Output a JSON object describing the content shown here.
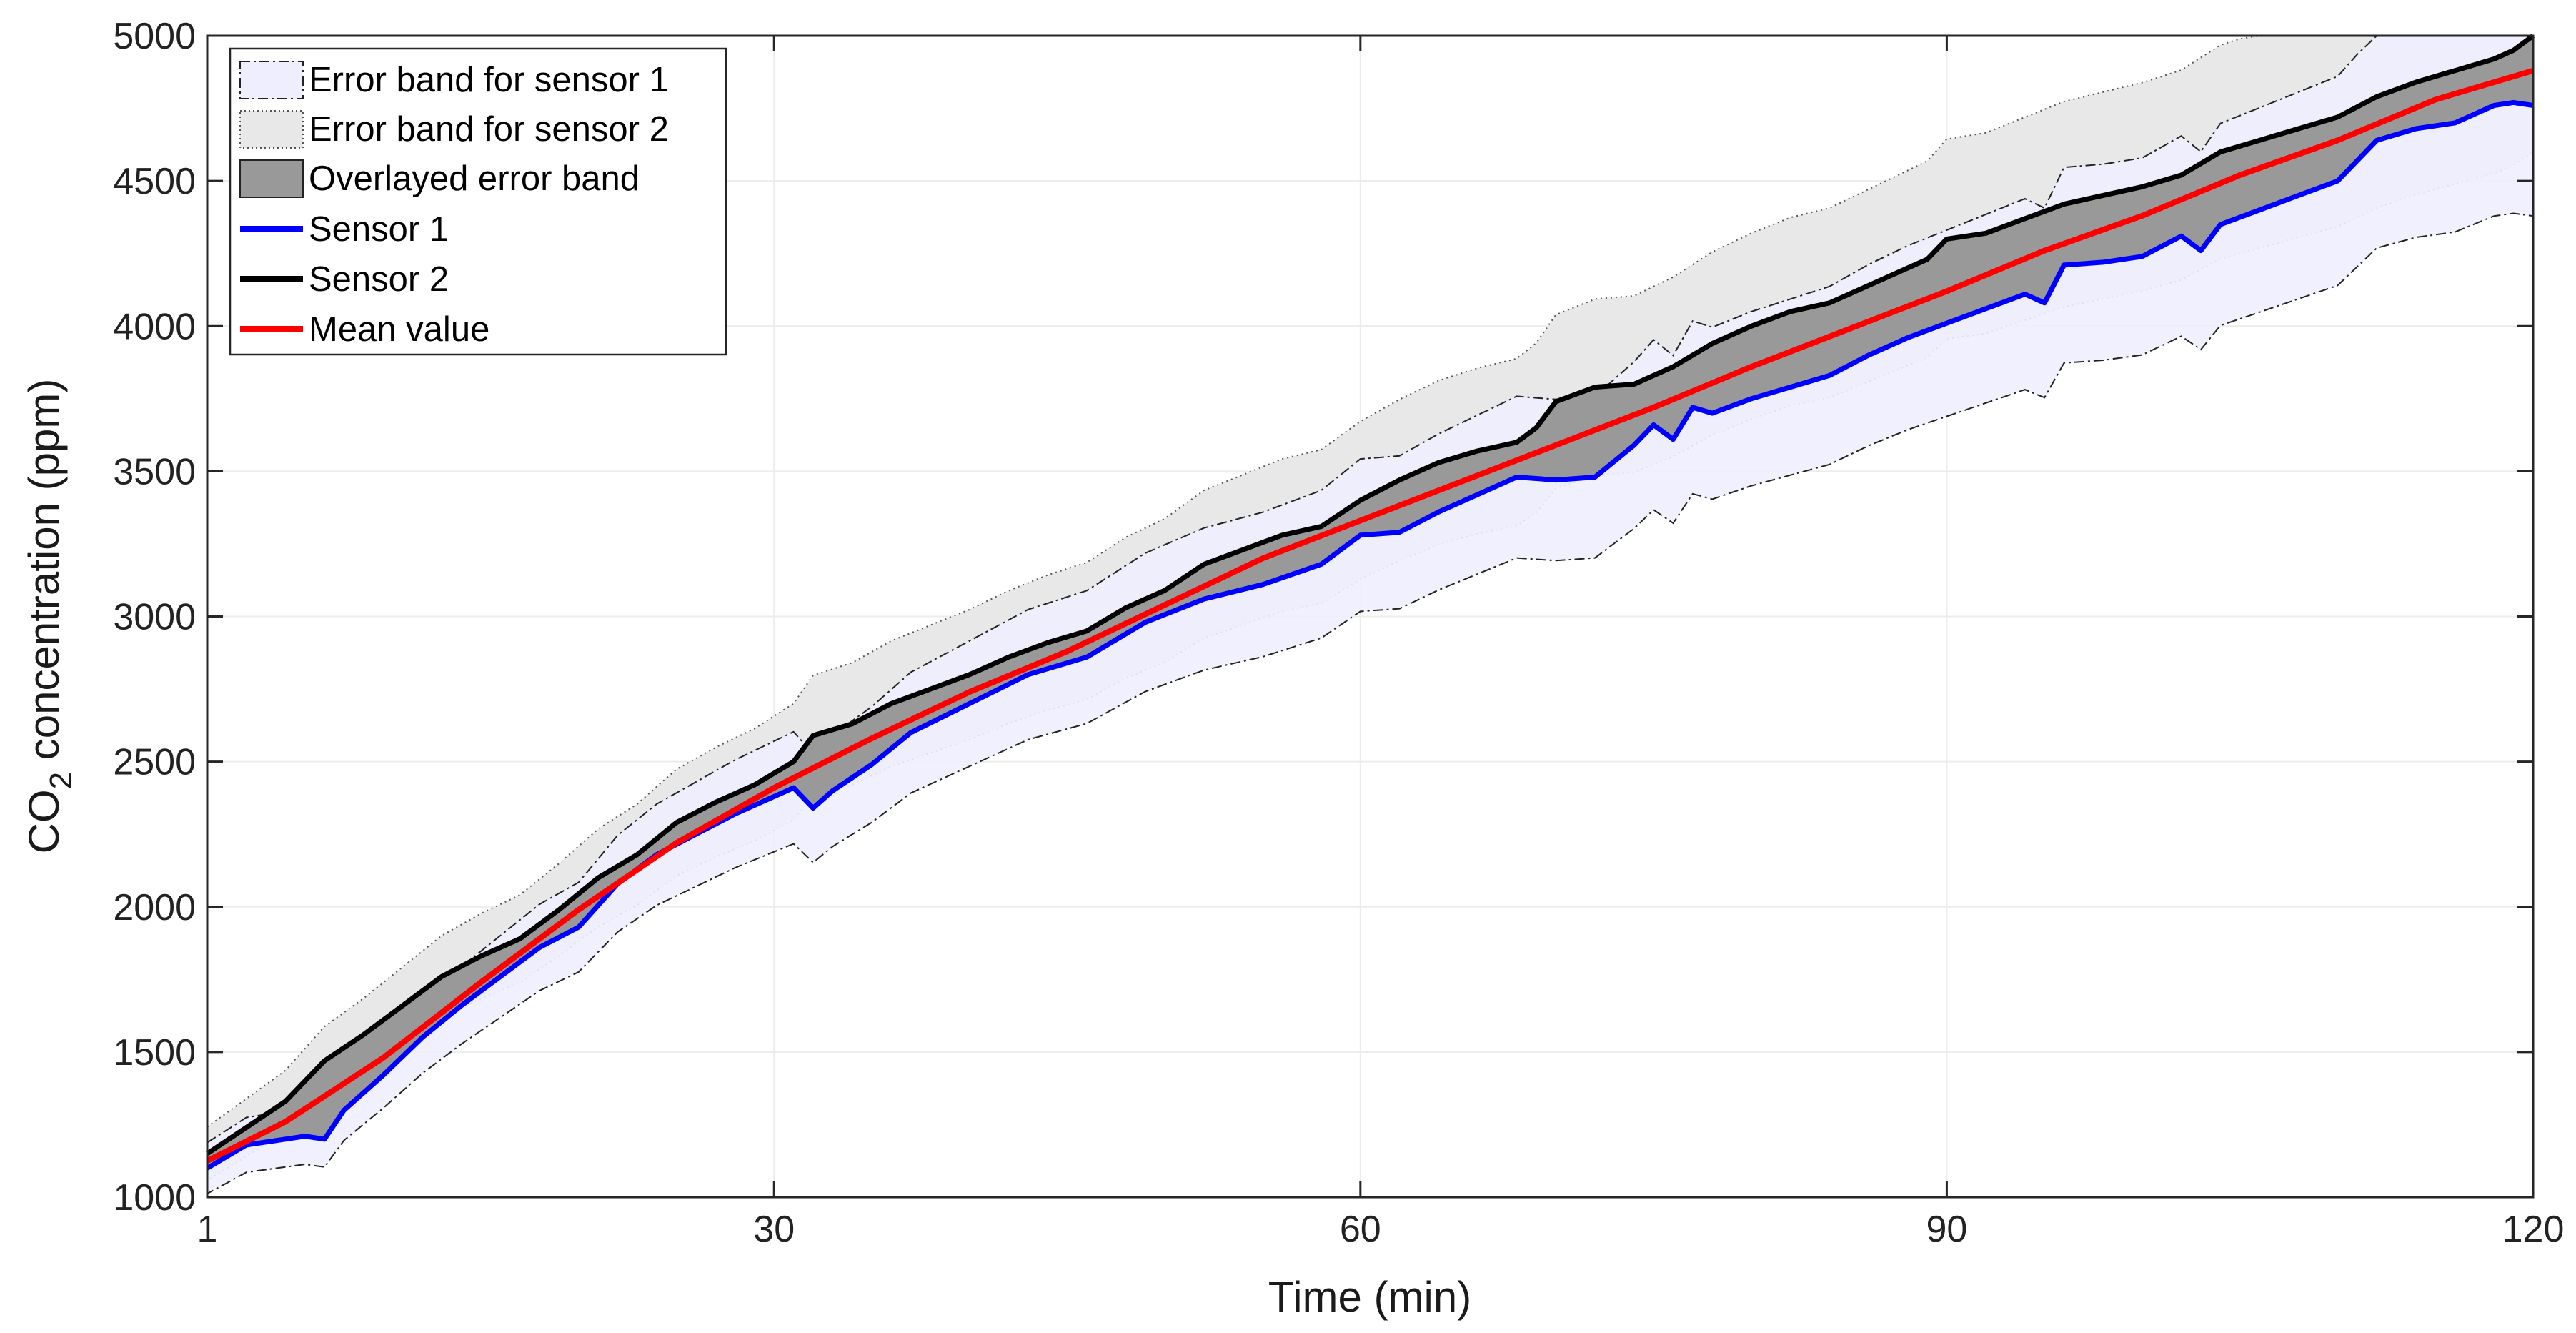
{
  "chart_data": {
    "type": "line",
    "title": "",
    "xlabel": "Time (min)",
    "ylabel": {
      "prefix": "CO",
      "subscript": "2",
      "suffix": " concentration (ppm)"
    },
    "xlim": [
      1,
      120
    ],
    "ylim": [
      1000,
      5000
    ],
    "xticks": [
      1,
      30,
      60,
      90,
      120
    ],
    "yticks": [
      1000,
      1500,
      2000,
      2500,
      3000,
      3500,
      4000,
      4500,
      5000
    ],
    "grid": true,
    "legend_position": "top-left",
    "legend": [
      {
        "label": "Error band for sensor 1",
        "kind": "band1"
      },
      {
        "label": "Error band for sensor 2",
        "kind": "band2"
      },
      {
        "label": "Overlayed error band",
        "kind": "overlap"
      },
      {
        "label": "Sensor 1",
        "kind": "line",
        "color": "#0000ff"
      },
      {
        "label": "Sensor 2",
        "kind": "line",
        "color": "#000000"
      },
      {
        "label": "Mean value",
        "kind": "line",
        "color": "#ff0000"
      }
    ],
    "band_offset_pct": 8,
    "colors": {
      "sensor1": "#0000ff",
      "sensor2": "#000000",
      "mean": "#ff0000",
      "band1_fill": "#eeeeff",
      "band2_fill": "#e8e8e8",
      "overlap_fill": "#999999",
      "grid": "#ececec",
      "axis": "#262626"
    },
    "series": [
      {
        "name": "Sensor 1",
        "x": [
          1,
          3,
          5,
          6,
          7,
          8,
          10,
          12,
          14,
          16,
          18,
          20,
          22,
          24,
          26,
          28,
          30,
          31,
          32,
          33,
          35,
          37,
          40,
          43,
          46,
          49,
          52,
          55,
          58,
          60,
          62,
          64,
          66,
          68,
          70,
          72,
          74,
          75,
          76,
          77,
          78,
          80,
          82,
          84,
          86,
          88,
          90,
          92,
          94,
          95,
          96,
          98,
          100,
          102,
          103,
          104,
          106,
          108,
          110,
          112,
          114,
          116,
          118,
          119,
          120
        ],
        "y": [
          1100,
          1180,
          1200,
          1210,
          1200,
          1300,
          1420,
          1550,
          1660,
          1760,
          1860,
          1930,
          2080,
          2180,
          2250,
          2320,
          2380,
          2410,
          2340,
          2400,
          2490,
          2600,
          2700,
          2800,
          2860,
          2980,
          3060,
          3110,
          3180,
          3280,
          3290,
          3360,
          3420,
          3480,
          3470,
          3480,
          3590,
          3660,
          3610,
          3720,
          3700,
          3750,
          3790,
          3830,
          3900,
          3960,
          4010,
          4060,
          4110,
          4080,
          4210,
          4220,
          4240,
          4310,
          4260,
          4350,
          4400,
          4450,
          4500,
          4640,
          4680,
          4700,
          4760,
          4770,
          4760
        ]
      },
      {
        "name": "Sensor 2",
        "x": [
          1,
          3,
          5,
          7,
          9,
          11,
          13,
          15,
          17,
          19,
          21,
          23,
          25,
          27,
          29,
          31,
          32,
          34,
          36,
          38,
          40,
          42,
          44,
          46,
          48,
          50,
          52,
          54,
          56,
          58,
          60,
          62,
          64,
          66,
          68,
          69,
          70,
          72,
          74,
          76,
          78,
          80,
          82,
          84,
          86,
          88,
          89,
          90,
          92,
          94,
          96,
          98,
          100,
          102,
          104,
          106,
          108,
          110,
          112,
          114,
          116,
          118,
          119,
          120
        ],
        "y": [
          1150,
          1240,
          1330,
          1470,
          1560,
          1660,
          1760,
          1830,
          1890,
          1990,
          2100,
          2180,
          2290,
          2360,
          2420,
          2500,
          2590,
          2630,
          2700,
          2750,
          2800,
          2860,
          2910,
          2950,
          3030,
          3090,
          3180,
          3230,
          3280,
          3310,
          3400,
          3470,
          3530,
          3570,
          3600,
          3650,
          3740,
          3790,
          3800,
          3860,
          3940,
          4000,
          4050,
          4080,
          4140,
          4200,
          4230,
          4300,
          4320,
          4370,
          4420,
          4450,
          4480,
          4520,
          4600,
          4640,
          4680,
          4720,
          4790,
          4840,
          4880,
          4920,
          4950,
          5000
        ]
      },
      {
        "name": "Mean value",
        "x": [
          1,
          5,
          10,
          15,
          20,
          25,
          30,
          35,
          40,
          45,
          50,
          55,
          60,
          65,
          70,
          75,
          80,
          85,
          90,
          95,
          100,
          105,
          110,
          115,
          120
        ],
        "y": [
          1125,
          1260,
          1480,
          1740,
          1990,
          2220,
          2410,
          2580,
          2740,
          2880,
          3040,
          3200,
          3330,
          3460,
          3590,
          3720,
          3860,
          3990,
          4120,
          4260,
          4380,
          4520,
          4640,
          4780,
          4880
        ]
      }
    ]
  }
}
